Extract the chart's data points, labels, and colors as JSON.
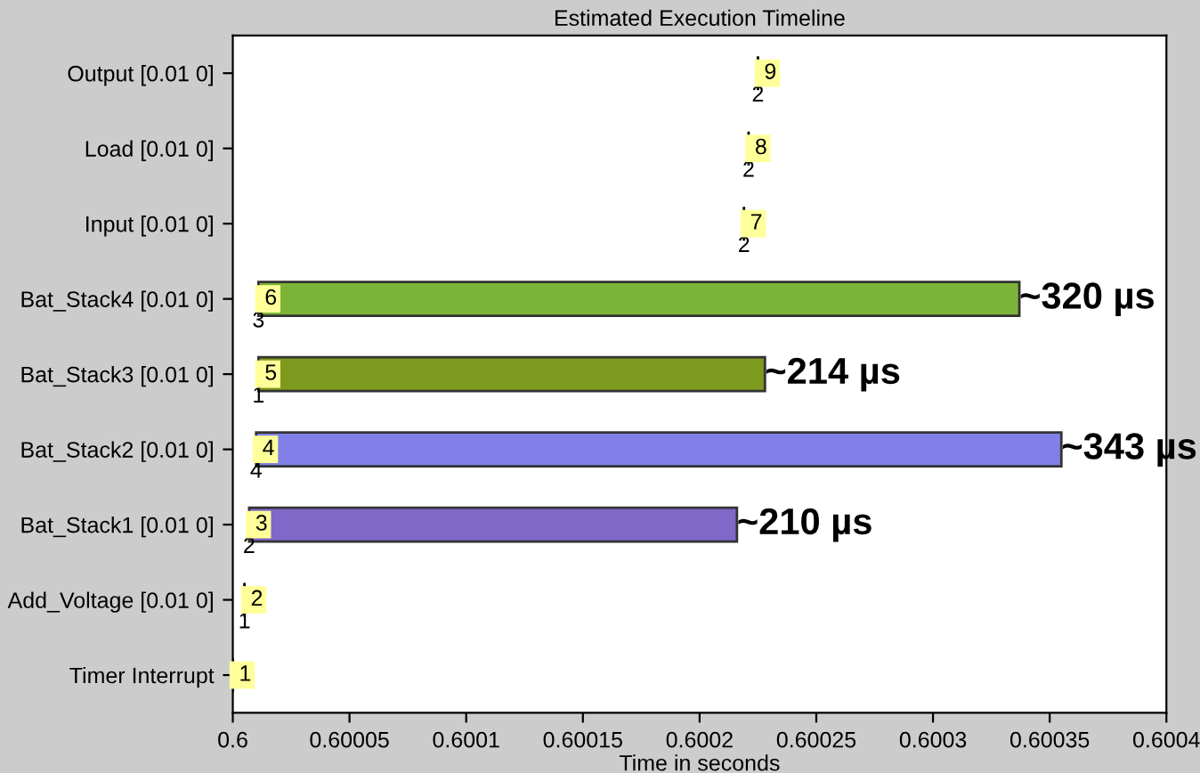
{
  "chart_data": {
    "type": "bar",
    "orientation": "horizontal",
    "title": "Estimated Execution Timeline",
    "xlabel": "Time in seconds",
    "categories": [
      "Output [0.01 0]",
      "Load [0.01 0]",
      "Input [0.01 0]",
      "Bat_Stack4 [0.01 0]",
      "Bat_Stack3 [0.01 0]",
      "Bat_Stack2 [0.01 0]",
      "Bat_Stack1 [0.01 0]",
      "Add_Voltage [0.01 0]",
      "Timer Interrupt"
    ],
    "base": [
      0.600225,
      0.600221,
      0.600219,
      0.600011,
      0.600011,
      0.60001,
      0.600007,
      0.600005,
      0.6
    ],
    "values": [
      0,
      0,
      0,
      0.000326,
      0.000217,
      0.000345,
      0.000209,
      0,
      0
    ],
    "colors": [
      "#000000",
      "#000000",
      "#000000",
      "#7cb43a",
      "#7d9a1e",
      "#8080e8",
      "#7f68c8",
      "#000000",
      "#000000"
    ],
    "xlim": [
      0.6,
      0.6004
    ],
    "xticks": [
      0.6,
      0.60005,
      0.6001,
      0.60015,
      0.6002,
      0.60025,
      0.6003,
      0.60035,
      0.6004
    ],
    "grid": false,
    "legend": false,
    "annotations": [
      {
        "text": "9",
        "x": 0.600225,
        "y": "Output [0.01 0]"
      },
      {
        "text": "8",
        "x": 0.600221,
        "y": "Load [0.01 0]"
      },
      {
        "text": "7",
        "x": 0.600219,
        "y": "Input [0.01 0]"
      },
      {
        "text": "6",
        "x": 0.600011,
        "y": "Bat_Stack4 [0.01 0]"
      },
      {
        "text": "5",
        "x": 0.600011,
        "y": "Bat_Stack3 [0.01 0]"
      },
      {
        "text": "4",
        "x": 0.60001,
        "y": "Bat_Stack2 [0.01 0]"
      },
      {
        "text": "3",
        "x": 0.600007,
        "y": "Bat_Stack1 [0.01 0]"
      },
      {
        "text": "2",
        "x": 0.600005,
        "y": "Add_Voltage [0.01 0]"
      },
      {
        "text": "1",
        "x": 0.6,
        "y": "Timer Interrupt"
      },
      {
        "text": "2",
        "x": 0.600225,
        "y": "Output [0.01 0]"
      },
      {
        "text": "2",
        "x": 0.600221,
        "y": "Load [0.01 0]"
      },
      {
        "text": "2",
        "x": 0.600219,
        "y": "Input [0.01 0]"
      },
      {
        "text": "3",
        "x": 0.600011,
        "y": "Bat_Stack4 [0.01 0]"
      },
      {
        "text": "1",
        "x": 0.600011,
        "y": "Bat_Stack3 [0.01 0]"
      },
      {
        "text": "4",
        "x": 0.60001,
        "y": "Bat_Stack2 [0.01 0]"
      },
      {
        "text": "2",
        "x": 0.600007,
        "y": "Bat_Stack1 [0.01 0]"
      },
      {
        "text": "1",
        "x": 0.600005,
        "y": "Add_Voltage [0.01 0]"
      },
      {
        "text": "~320 µs",
        "x": 0.600337,
        "y": "Bat_Stack4 [0.01 0]"
      },
      {
        "text": "~214 µs",
        "x": 0.600228,
        "y": "Bat_Stack3 [0.01 0]"
      },
      {
        "text": "~343 µs",
        "x": 0.600355,
        "y": "Bat_Stack2 [0.01 0]"
      },
      {
        "text": "~210 µs",
        "x": 0.600216,
        "y": "Bat_Stack1 [0.01 0]"
      }
    ]
  }
}
